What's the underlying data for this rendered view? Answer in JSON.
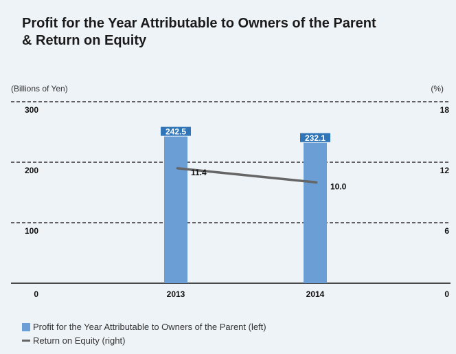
{
  "title_line1": "Profit for the Year Attributable to Owners of the Parent",
  "title_line2": "& Return on Equity",
  "unit_left": "(Billions of Yen)",
  "unit_right": "(%)",
  "colors": {
    "bar": "#6a9ed4",
    "bar_label_bg": "#2f75b8",
    "line": "#666666",
    "axis": "#111111",
    "grid": "#333333",
    "background": "#eef3f8"
  },
  "chart_data": {
    "type": "bar",
    "categories": [
      "2013",
      "2014"
    ],
    "series": [
      {
        "name": "Profit for the Year Attributable to Owners of the Parent (left)",
        "type": "bar",
        "axis": "left",
        "values": [
          242.5,
          232.1
        ],
        "data_labels": [
          "242.5",
          "232.1"
        ]
      },
      {
        "name": "Return on Equity (right)",
        "type": "line",
        "axis": "right",
        "values": [
          11.4,
          10.0
        ],
        "data_labels": [
          "11.4",
          "10.0"
        ]
      }
    ],
    "y_left": {
      "ticks": [
        "0",
        "100",
        "200",
        "300"
      ],
      "ylim": [
        0,
        300
      ]
    },
    "y_right": {
      "ticks": [
        "0",
        "6",
        "12",
        "18"
      ],
      "ylim": [
        0,
        18
      ]
    },
    "grid": "dashed-horizontal",
    "legend_position": "bottom-left"
  },
  "legend": [
    {
      "label": "Profit for the Year Attributable to Owners of the Parent (left)",
      "kind": "box"
    },
    {
      "label": "Return on Equity (right)",
      "kind": "line"
    }
  ]
}
